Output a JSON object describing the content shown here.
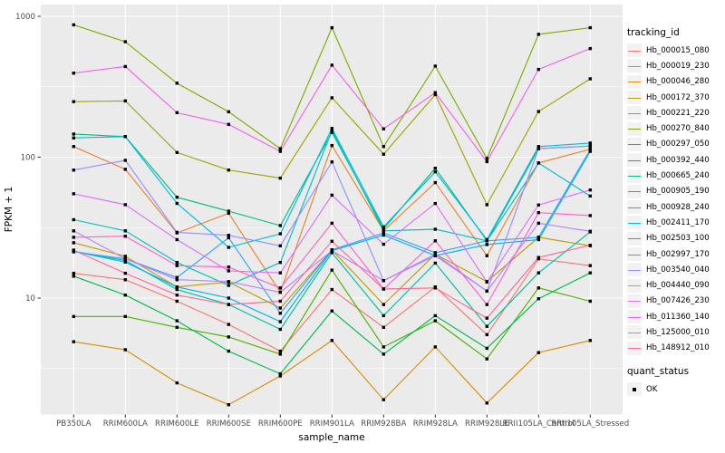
{
  "figure": {
    "background": "#FFFFFF",
    "panel_background": "#EBEBEB",
    "grid_color": "#FFFFFF",
    "tick_color": "#333333",
    "tick_label_color": "#4D4D4D",
    "point_color": "#000000"
  },
  "legend": {
    "tracking_title": "tracking_id",
    "quant_title": "quant_status",
    "quant_items": [
      {
        "label": "OK",
        "marker": "black-square"
      }
    ]
  },
  "chart_data": {
    "type": "line",
    "title": "",
    "xlabel": "sample_name",
    "ylabel": "FPKM + 1",
    "y_scale": "log10",
    "ylim": [
      1.5,
      1125
    ],
    "y_major_ticks": [
      1000,
      100,
      10
    ],
    "y_tick_labels": [
      "1000",
      "100",
      "10"
    ],
    "y_minor_ticks": [
      316.23,
      31.623,
      3.1623
    ],
    "grid": "on",
    "legend_position": "right",
    "point_marker": "small black square (quant_status = OK)",
    "x_categories": [
      "PB350LA",
      "RRIM600LA",
      "RRIM600LE",
      "RRIM600SE",
      "RRIM600PE",
      "RRIM901LA",
      "RRIM928BA",
      "RRIM928LA",
      "RRIM928LE",
      "RRII105LA_Control",
      "RRII105LA_Stressed"
    ],
    "series": [
      {
        "name": "Hb_000015_080",
        "color": "#F8766D",
        "values": [
          15,
          13.5,
          9.5,
          6.5,
          4.2,
          11.5,
          6.2,
          12,
          5.5,
          19,
          17
        ]
      },
      {
        "name": "Hb_000019_230",
        "color": "#EA8331",
        "values": [
          119,
          82,
          29,
          40,
          11,
          121,
          30,
          66,
          20,
          91,
          114
        ]
      },
      {
        "name": "Hb_000046_280",
        "color": "#D89000",
        "values": [
          4.9,
          4.3,
          2.5,
          1.75,
          2.8,
          5.0,
          1.9,
          4.5,
          1.8,
          4.1,
          5.0
        ]
      },
      {
        "name": "Hb_000172_370",
        "color": "#C09B00",
        "values": [
          24.7,
          19.8,
          12,
          13,
          8.5,
          22,
          9,
          20.5,
          13.1,
          27,
          23.5
        ]
      },
      {
        "name": "Hb_000221_220",
        "color": "#A3A500",
        "values": [
          248,
          251,
          108,
          81,
          71,
          264,
          105,
          278,
          46,
          211,
          360
        ]
      },
      {
        "name": "Hb_000270_840",
        "color": "#7CAE00",
        "values": [
          870,
          660,
          335,
          210,
          115,
          830,
          119,
          443,
          98,
          745,
          830
        ]
      },
      {
        "name": "Hb_000297_050",
        "color": "#49B500",
        "values": [
          7.4,
          7.4,
          6.2,
          5.3,
          4.0,
          15.8,
          4.5,
          6.9,
          3.7,
          11.8,
          9.5
        ]
      },
      {
        "name": "Hb_000392_440",
        "color": "#00BB4E",
        "values": [
          14.3,
          10.5,
          6.9,
          4.2,
          2.9,
          8.1,
          4.0,
          7.5,
          4.4,
          9.9,
          15.1
        ]
      },
      {
        "name": "Hb_000665_240",
        "color": "#00C079",
        "values": [
          146,
          140,
          52,
          41.4,
          32.7,
          150,
          31,
          83.5,
          25.5,
          115,
          120
        ]
      },
      {
        "name": "Hb_000905_190",
        "color": "#00C19F",
        "values": [
          21.5,
          18.5,
          11.5,
          9.0,
          6.0,
          21,
          7.5,
          17.7,
          6.3,
          15.1,
          29.5
        ]
      },
      {
        "name": "Hb_000928_240",
        "color": "#00BFC4",
        "values": [
          36,
          30,
          17.9,
          12.3,
          17.9,
          155,
          30,
          30.8,
          25.5,
          91,
          53
        ]
      },
      {
        "name": "Hb_002411_170",
        "color": "#00BAE5",
        "values": [
          137,
          140,
          47,
          22.9,
          28.6,
          160,
          32,
          78.7,
          26,
          119,
          126
        ]
      },
      {
        "name": "Hb_002503_100",
        "color": "#00B0F6",
        "values": [
          21.5,
          18,
          12,
          10,
          6.8,
          21.7,
          28,
          20,
          24,
          26,
          110
        ]
      },
      {
        "name": "Hb_002997_170",
        "color": "#35A2FF",
        "values": [
          21.3,
          19,
          14,
          26.8,
          7.8,
          22,
          29,
          21,
          25.5,
          27,
          113
        ]
      },
      {
        "name": "Hb_003540_040",
        "color": "#9590FF",
        "values": [
          81,
          95,
          29.3,
          27.9,
          23.5,
          92.6,
          13.3,
          20,
          11.2,
          115,
          120
        ]
      },
      {
        "name": "Hb_004440_090",
        "color": "#BF80FF",
        "values": [
          30,
          19,
          13.5,
          13.1,
          11,
          21.7,
          13.3,
          20.5,
          11.2,
          34,
          29.8
        ]
      },
      {
        "name": "Hb_007426_230",
        "color": "#DB72FB",
        "values": [
          55,
          46,
          26,
          15.6,
          15.1,
          53.8,
          24.1,
          46.9,
          13,
          45.8,
          58.5
        ]
      },
      {
        "name": "Hb_011360_140",
        "color": "#F265E8",
        "values": [
          395,
          440,
          207,
          171,
          110,
          450,
          159,
          287,
          93,
          420,
          590
        ]
      },
      {
        "name": "Hb_125000_010",
        "color": "#FF61CC",
        "values": [
          27,
          27.5,
          17,
          16.6,
          11.8,
          34,
          11.6,
          25.5,
          9,
          40.4,
          38.5
        ]
      },
      {
        "name": "Hb_148912_010",
        "color": "#FF689F",
        "values": [
          21.9,
          15,
          10.5,
          9.0,
          9.5,
          25.3,
          11.6,
          11.8,
          7.2,
          19.4,
          23.7
        ]
      }
    ]
  }
}
